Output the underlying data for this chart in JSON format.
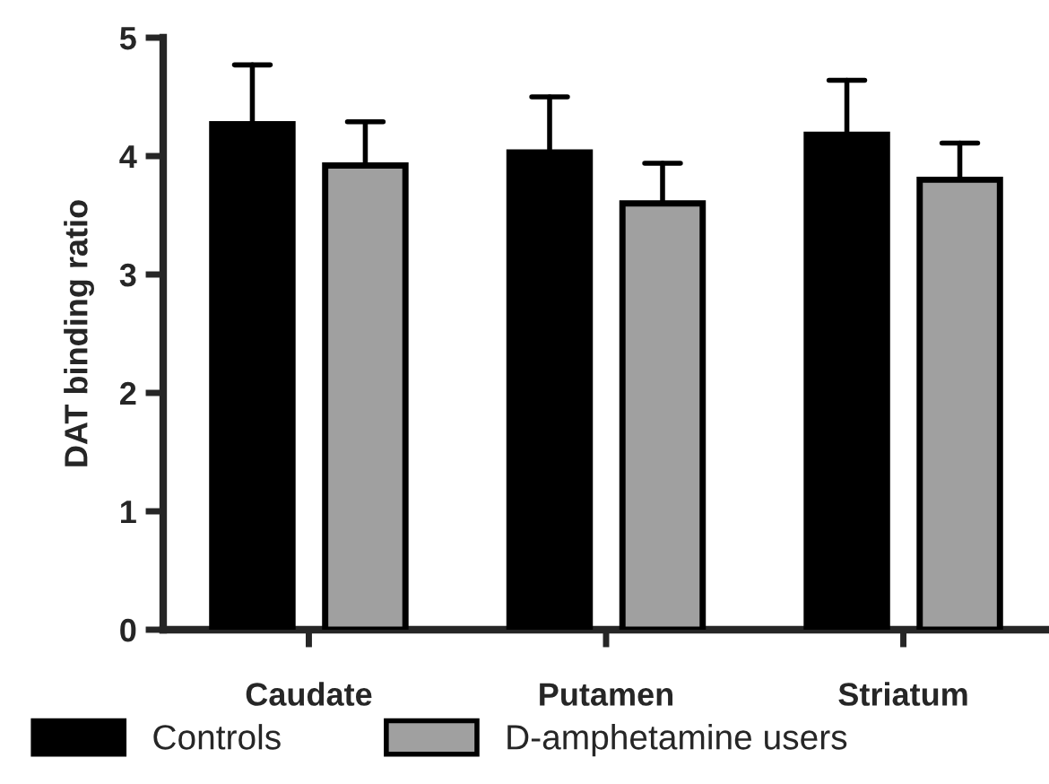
{
  "chart_data": {
    "type": "bar",
    "ylabel": "DAT binding ratio",
    "categories": [
      "Caudate",
      "Putamen",
      "Striatum"
    ],
    "series": [
      {
        "name": "Controls",
        "color": "#000000",
        "values": [
          4.27,
          4.03,
          4.18
        ],
        "errors": [
          [
            4.27,
            4.77
          ],
          [
            4.03,
            4.5
          ],
          [
            4.18,
            4.64
          ]
        ]
      },
      {
        "name": "D-amphetamine users",
        "color": "#a0a0a0",
        "values": [
          3.92,
          3.6,
          3.8
        ],
        "errors": [
          [
            3.92,
            4.29
          ],
          [
            3.6,
            3.94
          ],
          [
            3.8,
            4.11
          ]
        ]
      }
    ],
    "ylim": [
      0,
      5
    ],
    "yticks": [
      0,
      1,
      2,
      3,
      4,
      5
    ],
    "grid": false,
    "legend": "bottom"
  }
}
